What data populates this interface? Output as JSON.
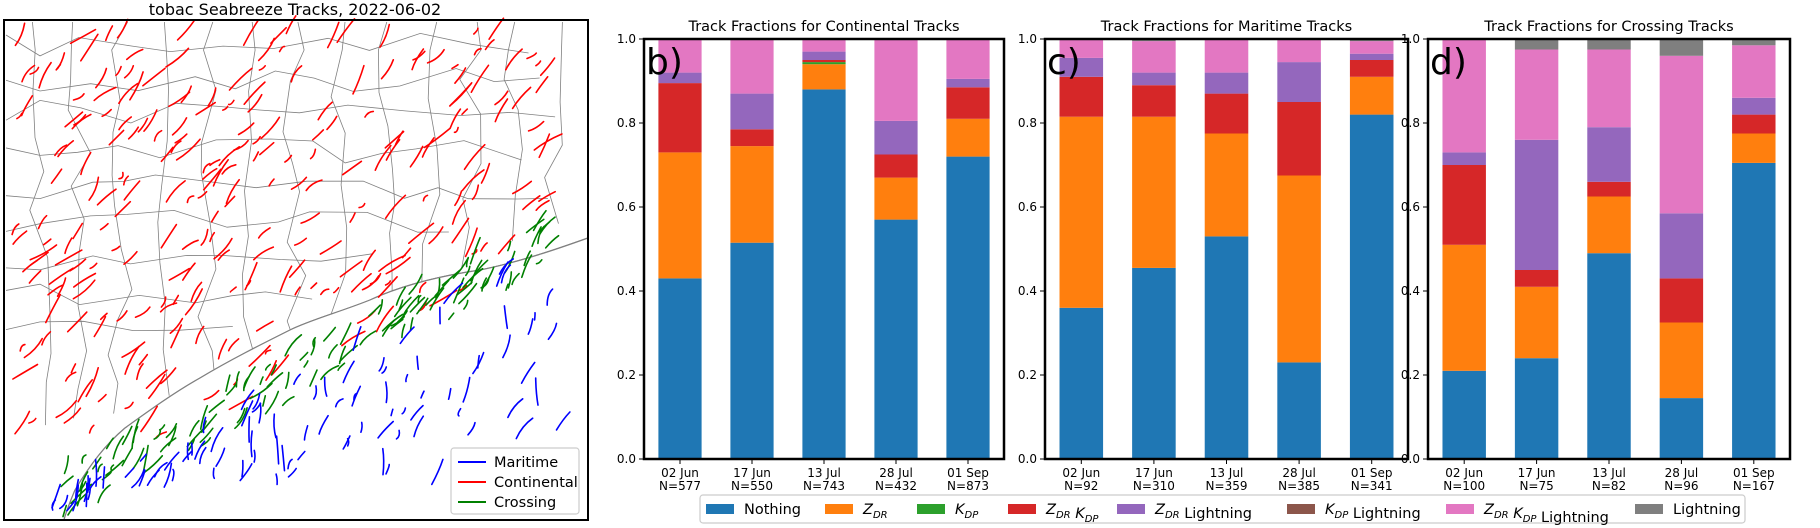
{
  "colors": {
    "maritime": "#0000ff",
    "continental": "#ff0000",
    "crossing": "#008000",
    "county_lines": "#808080",
    "legend_border": "#cccccc"
  },
  "map": {
    "title": "tobac Seabreeze Tracks, 2022-06-02",
    "legend": [
      {
        "label": "Maritime",
        "color": "#0000ff"
      },
      {
        "label": "Continental",
        "color": "#ff0000"
      },
      {
        "label": "Crossing",
        "color": "#008000"
      }
    ]
  },
  "categories_legend": [
    {
      "key": "nothing",
      "base": "Nothing",
      "sub": [],
      "color": "#1f77b4"
    },
    {
      "key": "zdr",
      "base": "",
      "sub": [
        "Z",
        "DR"
      ],
      "suffix": "",
      "color": "#ff7f0e"
    },
    {
      "key": "kdp",
      "base": "",
      "sub": [
        "K",
        "DP"
      ],
      "suffix": "",
      "color": "#2ca02c"
    },
    {
      "key": "zdr_kdp",
      "base": "",
      "sub": [
        "Z",
        "DR",
        "K",
        "DP"
      ],
      "suffix": "",
      "color": "#d62728"
    },
    {
      "key": "zdr_lightning",
      "base": "",
      "sub": [
        "Z",
        "DR"
      ],
      "suffix": " Lightning",
      "color": "#9467bd"
    },
    {
      "key": "kdp_lightning",
      "base": "",
      "sub": [
        "K",
        "DP"
      ],
      "suffix": " Lightning",
      "color": "#8c564b"
    },
    {
      "key": "zdr_kdp_lightning",
      "base": "",
      "sub": [
        "Z",
        "DR",
        "K",
        "DP"
      ],
      "suffix": " Lightning",
      "color": "#e377c2"
    },
    {
      "key": "lightning",
      "base": "Lightning",
      "sub": [],
      "color": "#7f7f7f"
    }
  ],
  "chart_data": [
    {
      "type": "bar",
      "stacked": true,
      "panel_label": "b)",
      "title": "Track Fractions for Continental Tracks",
      "categories": [
        "02 Jun\nN=577",
        "17 Jun\nN=550",
        "13 Jul\nN=743",
        "28 Jul\nN=432",
        "01 Sep\nN=873"
      ],
      "ylim": [
        0,
        1.0
      ],
      "yticks": [
        "0.0",
        "0.2",
        "0.4",
        "0.6",
        "0.8",
        "1.0"
      ],
      "series": [
        {
          "name": "Nothing",
          "values": [
            0.43,
            0.515,
            0.88,
            0.57,
            0.72
          ]
        },
        {
          "name": "ZDR",
          "values": [
            0.3,
            0.23,
            0.06,
            0.1,
            0.09
          ]
        },
        {
          "name": "KDP",
          "values": [
            0.0,
            0.0,
            0.005,
            0.0,
            0.0
          ]
        },
        {
          "name": "ZDR KDP",
          "values": [
            0.165,
            0.04,
            0.005,
            0.055,
            0.075
          ]
        },
        {
          "name": "ZDR Lightning",
          "values": [
            0.025,
            0.085,
            0.02,
            0.08,
            0.02
          ]
        },
        {
          "name": "KDP Lightning",
          "values": [
            0.0,
            0.0,
            0.0,
            0.0,
            0.0
          ]
        },
        {
          "name": "ZDR KDP Lightning",
          "values": [
            0.08,
            0.13,
            0.03,
            0.195,
            0.095
          ]
        },
        {
          "name": "Lightning",
          "values": [
            0.0,
            0.0,
            0.0,
            0.0,
            0.0
          ]
        }
      ]
    },
    {
      "type": "bar",
      "stacked": true,
      "panel_label": "c)",
      "title": "Track Fractions for Maritime Tracks",
      "categories": [
        "02 Jun\nN=92",
        "17 Jun\nN=310",
        "13 Jul\nN=359",
        "28 Jul\nN=385",
        "01 Sep\nN=341"
      ],
      "ylim": [
        0,
        1.0
      ],
      "yticks": [
        "0.0",
        "0.2",
        "0.4",
        "0.6",
        "0.8",
        "1.0"
      ],
      "series": [
        {
          "name": "Nothing",
          "values": [
            0.36,
            0.455,
            0.53,
            0.23,
            0.82
          ]
        },
        {
          "name": "ZDR",
          "values": [
            0.455,
            0.36,
            0.245,
            0.445,
            0.09
          ]
        },
        {
          "name": "KDP",
          "values": [
            0.0,
            0.0,
            0.0,
            0.0,
            0.0
          ]
        },
        {
          "name": "ZDR KDP",
          "values": [
            0.095,
            0.075,
            0.095,
            0.175,
            0.04
          ]
        },
        {
          "name": "ZDR Lightning",
          "values": [
            0.045,
            0.03,
            0.05,
            0.095,
            0.015
          ]
        },
        {
          "name": "KDP Lightning",
          "values": [
            0.0,
            0.0,
            0.0,
            0.0,
            0.0
          ]
        },
        {
          "name": "ZDR KDP Lightning",
          "values": [
            0.045,
            0.075,
            0.08,
            0.055,
            0.03
          ]
        },
        {
          "name": "Lightning",
          "values": [
            0.0,
            0.005,
            0.0,
            0.0,
            0.005
          ]
        }
      ]
    },
    {
      "type": "bar",
      "stacked": true,
      "panel_label": "d)",
      "title": "Track Fractions for Crossing Tracks",
      "categories": [
        "02 Jun\nN=100",
        "17 Jun\nN=75",
        "13 Jul\nN=82",
        "28 Jul\nN=96",
        "01 Sep\nN=167"
      ],
      "ylim": [
        0,
        1.0
      ],
      "yticks": [
        "0.0",
        "0.2",
        "0.4",
        "0.6",
        "0.8",
        "1.0"
      ],
      "series": [
        {
          "name": "Nothing",
          "values": [
            0.21,
            0.24,
            0.49,
            0.145,
            0.705
          ]
        },
        {
          "name": "ZDR",
          "values": [
            0.3,
            0.17,
            0.135,
            0.18,
            0.07
          ]
        },
        {
          "name": "KDP",
          "values": [
            0.0,
            0.0,
            0.0,
            0.0,
            0.0
          ]
        },
        {
          "name": "ZDR KDP",
          "values": [
            0.19,
            0.04,
            0.035,
            0.105,
            0.045
          ]
        },
        {
          "name": "ZDR Lightning",
          "values": [
            0.03,
            0.31,
            0.13,
            0.155,
            0.04
          ]
        },
        {
          "name": "KDP Lightning",
          "values": [
            0.0,
            0.0,
            0.0,
            0.0,
            0.0
          ]
        },
        {
          "name": "ZDR KDP Lightning",
          "values": [
            0.27,
            0.215,
            0.185,
            0.375,
            0.125
          ]
        },
        {
          "name": "Lightning",
          "values": [
            0.0,
            0.025,
            0.025,
            0.04,
            0.015
          ]
        }
      ]
    }
  ]
}
